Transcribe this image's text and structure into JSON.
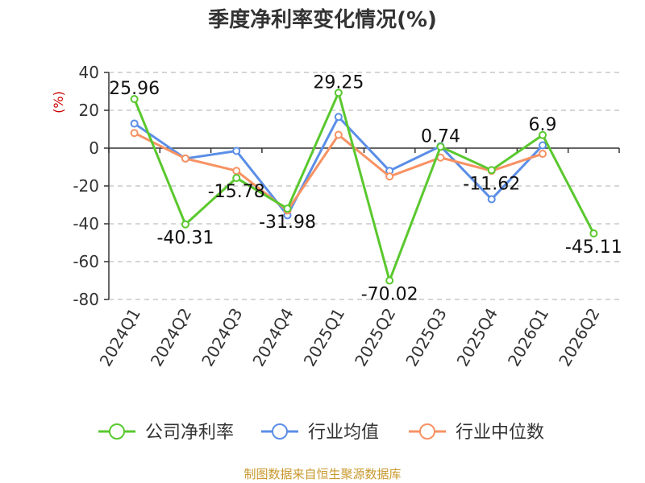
{
  "chart_data": {
    "type": "line",
    "title": "季度净利率变化情况(%)",
    "ylabel": "(%)",
    "xlabel": "",
    "ylim": [
      -80,
      40
    ],
    "yticks": [
      40,
      20,
      0,
      -20,
      -40,
      -60,
      -80
    ],
    "grid": true,
    "legend_position": "bottom",
    "categories": [
      "2024Q1",
      "2024Q2",
      "2024Q3",
      "2024Q4",
      "2025Q1",
      "2025Q2",
      "2025Q3",
      "2025Q4",
      "2026Q1",
      "2026Q2"
    ],
    "series": [
      {
        "name": "公司净利率",
        "color": "#5ac82e",
        "values": [
          25.96,
          -40.31,
          -15.78,
          -31.98,
          29.25,
          -70.02,
          0.74,
          -11.62,
          6.9,
          -45.11
        ],
        "labels": [
          "25.96",
          "-40.31",
          "-15.78",
          "-31.98",
          "29.25",
          "-70.02",
          "0.74",
          "-11.62",
          "6.9",
          "-45.11"
        ]
      },
      {
        "name": "行业均值",
        "color": "#5b8ee6",
        "values": [
          13,
          -5.5,
          -1.5,
          -35.5,
          16.5,
          -12,
          1,
          -27,
          1.5,
          null
        ]
      },
      {
        "name": "行业中位数",
        "color": "#f79263",
        "values": [
          8,
          -5.5,
          -12,
          -33,
          7,
          -15,
          -5,
          -12,
          -3,
          null
        ]
      }
    ]
  },
  "source": "制图数据来自恒生聚源数据库"
}
